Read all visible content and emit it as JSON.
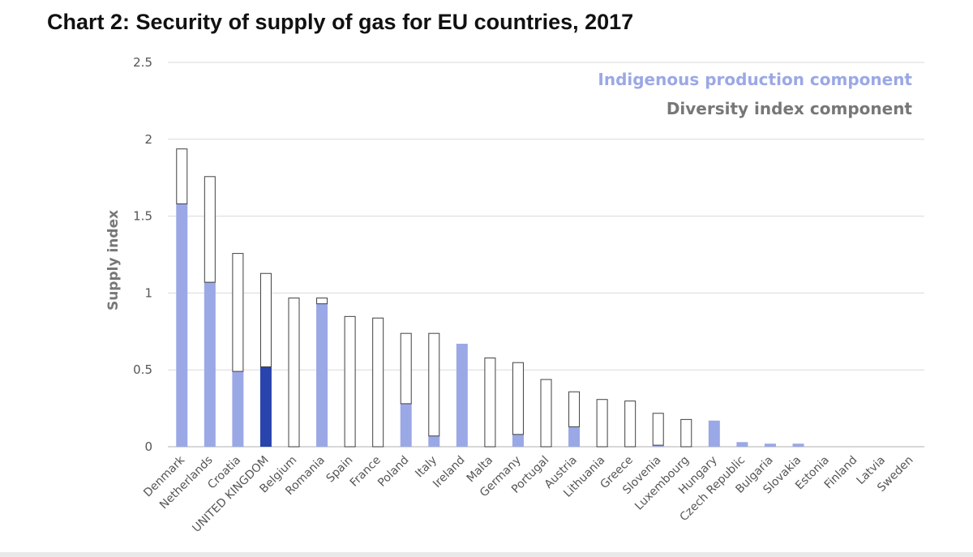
{
  "chart_data": {
    "type": "bar",
    "stacked": true,
    "title": "Chart 2: Security of supply of gas for EU countries, 2017",
    "xlabel": "",
    "ylabel": "Supply index",
    "ylim": [
      0,
      2.5
    ],
    "yticks": [
      0,
      0.5,
      1,
      1.5,
      2,
      2.5
    ],
    "ytick_labels": [
      "0",
      "0.5",
      "1",
      "1.5",
      "2",
      "2.5"
    ],
    "grid": true,
    "legend_position": "top-right",
    "categories": [
      "Denmark",
      "Netherlands",
      "Croatia",
      "UNITED KINGDOM",
      "Belgium",
      "Romania",
      "Spain",
      "France",
      "Poland",
      "Italy",
      "Ireland",
      "Malta",
      "Germany",
      "Portugal",
      "Austria",
      "Lithuania",
      "Greece",
      "Slovenia",
      "Luxembourg",
      "Hungary",
      "Czech Republic",
      "Bulgaria",
      "Slovakia",
      "Estonia",
      "Finland",
      "Latvia",
      "Sweden"
    ],
    "series": [
      {
        "name": "Indigenous production component",
        "color": "#9ba8e6",
        "values": [
          1.58,
          1.07,
          0.49,
          0.52,
          0,
          0.93,
          0,
          0,
          0.28,
          0.07,
          0.67,
          0,
          0.08,
          0,
          0.13,
          0,
          0,
          0.01,
          0,
          0.17,
          0.03,
          0.02,
          0.02,
          0,
          0,
          0,
          0
        ]
      },
      {
        "name": "Diversity index component",
        "color": "#ffffff",
        "values": [
          0.36,
          0.69,
          0.77,
          0.61,
          0.97,
          0.04,
          0.85,
          0.84,
          0.46,
          0.67,
          0,
          0.58,
          0.47,
          0.44,
          0.23,
          0.31,
          0.3,
          0.21,
          0.18,
          0,
          0,
          0,
          0,
          0,
          0,
          0,
          0
        ]
      }
    ],
    "highlight": {
      "category": "UNITED KINGDOM",
      "color": "#2a44ad"
    },
    "colors": {
      "legend_production": "#9ba8e6",
      "legend_diversity": "#777777"
    }
  }
}
